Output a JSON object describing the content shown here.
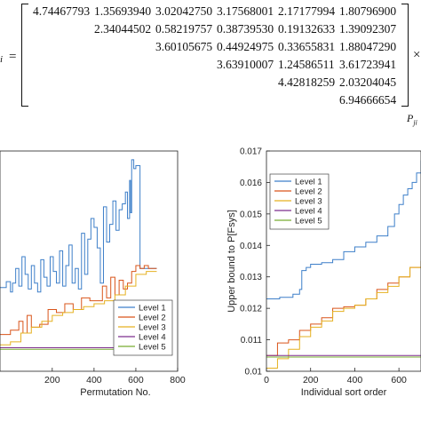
{
  "matrix": {
    "left_label": "i",
    "equals": "=",
    "times": "×",
    "right_label": "P",
    "right_label_sub": "ji",
    "rows": [
      [
        "4.74467793",
        "1.35693940",
        "3.02042750",
        "3.17568001",
        "2.17177994",
        "1.80796900"
      ],
      [
        "2.34044502",
        "0.58219757",
        "0.38739530",
        "0.19132633",
        "1.39092307"
      ],
      [
        "3.60105675",
        "0.44924975",
        "0.33655831",
        "1.88047290"
      ],
      [
        "3.63910007",
        "1.24586511",
        "3.61723941"
      ],
      [
        "4.42818259",
        "2.03204045"
      ],
      [
        "6.94666654"
      ]
    ]
  },
  "chart_data": [
    {
      "type": "line",
      "xlabel": "Permutation No.",
      "ylabel": "",
      "xlim": [
        -50,
        800
      ],
      "xticks": [
        "200",
        "400",
        "600",
        "800"
      ],
      "legend_position": "bottom-right",
      "grid": false,
      "series": [
        {
          "name": "Level 1",
          "color": "#3d7fc9",
          "x": [
            -50,
            -20,
            0,
            10,
            25,
            40,
            55,
            70,
            85,
            100,
            115,
            130,
            145,
            160,
            175,
            190,
            205,
            220,
            235,
            250,
            265,
            280,
            295,
            310,
            325,
            340,
            355,
            370,
            385,
            400,
            415,
            430,
            445,
            460,
            475,
            490,
            505,
            520,
            535,
            550,
            560,
            570,
            575,
            580,
            590,
            600,
            620,
            640,
            660,
            680,
            700
          ],
          "y": [
            0.01285,
            0.01305,
            0.0127,
            0.013,
            0.0135,
            0.0129,
            0.0139,
            0.0133,
            0.0128,
            0.0136,
            0.013,
            0.0127,
            0.0138,
            0.0132,
            0.0129,
            0.0139,
            0.0134,
            0.013,
            0.0141,
            0.0129,
            0.0136,
            0.0143,
            0.013,
            0.0135,
            0.0128,
            0.0147,
            0.0133,
            0.0145,
            0.0152,
            0.0149,
            0.0142,
            0.013,
            0.0156,
            0.0144,
            0.015,
            0.0158,
            0.0148,
            0.0155,
            0.0157,
            0.0161,
            0.0152,
            0.0165,
            0.0154,
            0.0172,
            0.0169,
            0.017,
            0.0135,
            0.0135,
            0.0135,
            0.0135,
            0.0135
          ]
        },
        {
          "name": "Level 2",
          "color": "#d9541a",
          "x": [
            -50,
            0,
            40,
            60,
            80,
            100,
            140,
            180,
            220,
            260,
            300,
            340,
            380,
            420,
            440,
            460,
            480,
            500,
            520,
            540,
            560,
            580,
            600,
            620,
            640,
            660,
            700
          ],
          "y": [
            0.01125,
            0.0114,
            0.0117,
            0.0113,
            0.0119,
            0.0115,
            0.0116,
            0.0121,
            0.012,
            0.0123,
            0.0121,
            0.0125,
            0.0124,
            0.0124,
            0.0129,
            0.0125,
            0.0132,
            0.0126,
            0.0131,
            0.0128,
            0.013,
            0.0134,
            0.0136,
            0.0135,
            0.0136,
            0.0135,
            0.0135
          ]
        },
        {
          "name": "Level 3",
          "color": "#e5b120",
          "x": [
            -50,
            0,
            50,
            100,
            150,
            200,
            250,
            300,
            350,
            400,
            450,
            500,
            550,
            600,
            650,
            700
          ],
          "y": [
            0.0109,
            0.011,
            0.0113,
            0.0115,
            0.0117,
            0.0119,
            0.012,
            0.0121,
            0.0122,
            0.0123,
            0.0124,
            0.0126,
            0.0129,
            0.0133,
            0.0134,
            0.0134
          ]
        },
        {
          "name": "Level 4",
          "color": "#7e2f8e",
          "x": [
            -50,
            0,
            700
          ],
          "y": [
            0.0108,
            0.0108,
            0.0108
          ]
        },
        {
          "name": "Level 5",
          "color": "#77ac30",
          "x": [
            -50,
            0,
            700
          ],
          "y": [
            0.01075,
            0.01075,
            0.01075
          ]
        }
      ]
    },
    {
      "type": "line",
      "xlabel": "Individual sort order",
      "ylabel": "Upper bound to P[Fsys]",
      "xlim": [
        0,
        700
      ],
      "ylim": [
        0.01,
        0.017
      ],
      "xticks": [
        "0",
        "200",
        "400",
        "600"
      ],
      "yticks": [
        "0.01",
        "0.011",
        "0.012",
        "0.013",
        "0.014",
        "0.015",
        "0.016",
        "0.017"
      ],
      "legend_position": "top-left",
      "grid": false,
      "series": [
        {
          "name": "Level 1",
          "color": "#3d7fc9",
          "x": [
            0,
            20,
            60,
            120,
            150,
            160,
            180,
            200,
            250,
            300,
            350,
            400,
            450,
            500,
            550,
            580,
            600,
            620,
            640,
            660,
            680,
            700
          ],
          "y": [
            0.0123,
            0.0123,
            0.01235,
            0.01245,
            0.0126,
            0.0132,
            0.0133,
            0.0134,
            0.01345,
            0.01355,
            0.0138,
            0.01395,
            0.0141,
            0.0143,
            0.0146,
            0.015,
            0.0153,
            0.0156,
            0.0158,
            0.016,
            0.0163,
            0.0167
          ]
        },
        {
          "name": "Level 2",
          "color": "#d9541a",
          "x": [
            0,
            50,
            100,
            150,
            200,
            250,
            300,
            350,
            400,
            450,
            500,
            550,
            600,
            650,
            700
          ],
          "y": [
            0.0105,
            0.0109,
            0.011,
            0.0113,
            0.0115,
            0.0117,
            0.012,
            0.01205,
            0.0121,
            0.0123,
            0.0126,
            0.0128,
            0.013,
            0.0133,
            0.0135
          ]
        },
        {
          "name": "Level 3",
          "color": "#e5b120",
          "x": [
            0,
            50,
            100,
            150,
            200,
            250,
            300,
            350,
            400,
            450,
            500,
            550,
            600,
            650,
            700
          ],
          "y": [
            0.0101,
            0.0104,
            0.0107,
            0.0111,
            0.0114,
            0.0116,
            0.0119,
            0.012,
            0.0121,
            0.0123,
            0.0125,
            0.0127,
            0.013,
            0.0133,
            0.0135
          ]
        },
        {
          "name": "Level 4",
          "color": "#7e2f8e",
          "x": [
            0,
            700
          ],
          "y": [
            0.0105,
            0.0105
          ]
        },
        {
          "name": "Level 5",
          "color": "#77ac30",
          "x": [
            0,
            700
          ],
          "y": [
            0.01045,
            0.01045
          ]
        }
      ]
    }
  ]
}
